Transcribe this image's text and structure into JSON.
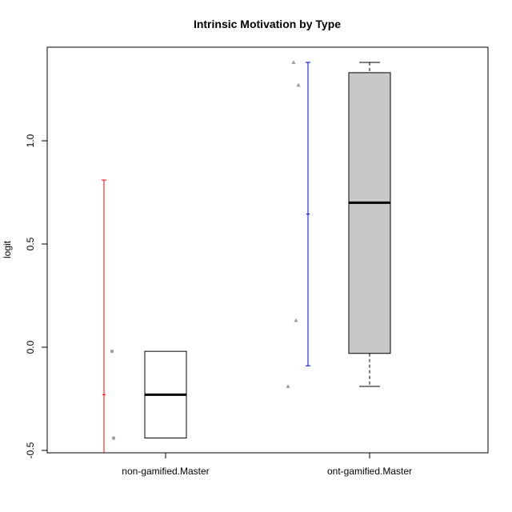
{
  "chart_data": {
    "type": "box",
    "title": "Intrinsic Motivation by Type",
    "xlabel": "",
    "ylabel": "logit",
    "ylim": [
      -0.52,
      1.4
    ],
    "y_ticks": [
      -0.5,
      0.0,
      0.5,
      1.0
    ],
    "y_tick_labels": [
      "-0.5",
      "0.0",
      "0.5",
      "1.0"
    ],
    "grid": false,
    "legend": "none",
    "categories": [
      "non-gamified.Master",
      "ont-gamified.Master"
    ],
    "boxes": [
      {
        "category": "non-gamified.Master",
        "min": -0.44,
        "q1": -0.44,
        "median": -0.23,
        "q3": -0.02,
        "max": -0.02,
        "fill": "#ffffff"
      },
      {
        "category": "ont-gamified.Master",
        "min": -0.19,
        "q1": -0.03,
        "median": 0.7,
        "q3": 1.33,
        "max": 1.38,
        "fill": "#c8c8c8"
      }
    ],
    "points": [
      {
        "group": "non-gamified.Master",
        "values": [
          -0.02,
          -0.44
        ],
        "shape": "circle",
        "color": "#a0a0a0"
      },
      {
        "group": "ont-gamified.Master",
        "values": [
          1.38,
          1.27,
          0.13,
          -0.19
        ],
        "shape": "triangle",
        "color": "#a0a0a0"
      }
    ],
    "intervals": [
      {
        "group": "non-gamified.Master",
        "low": -0.52,
        "mid": -0.23,
        "high": 0.81,
        "color": "#ff0000"
      },
      {
        "group": "ont-gamified.Master",
        "low": -0.09,
        "mid": 0.645,
        "high": 1.38,
        "color": "#0000cc"
      }
    ]
  }
}
